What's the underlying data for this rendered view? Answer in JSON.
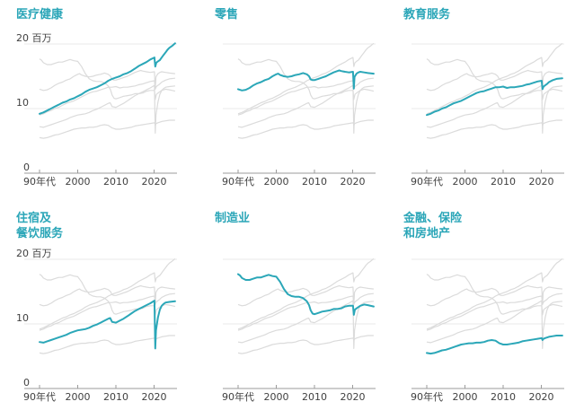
{
  "page": {
    "background": "#ffffff"
  },
  "chart_data": {
    "type": "line",
    "layout": "small_multiples_2x3",
    "unit_label": "百万",
    "grid": "horizontal-only",
    "legend": "none",
    "x_domain": [
      1990,
      2025.5
    ],
    "y_domain": [
      0,
      21
    ],
    "x_tick_labels": [
      "90年代",
      "2000",
      "2010",
      "2020"
    ],
    "x_tick_years": [
      1990,
      2000,
      2010,
      2020
    ],
    "y_ticks": [
      {
        "value": 20,
        "label": "20 百万"
      },
      {
        "value": 10,
        "label": "10"
      },
      {
        "value": 0,
        "label": "0"
      }
    ],
    "colors": {
      "highlight": "#2BA7B8",
      "title": "#2BA6B8",
      "context": "#DBDBDB",
      "grid": "#E8E8E8",
      "axis": "#9B9B9B",
      "text": "#404040"
    },
    "series_order": [
      "healthcare",
      "retail",
      "education",
      "accommodation_food",
      "manufacturing",
      "finance_insurance_real_estate"
    ],
    "series": {
      "healthcare": [
        [
          1990,
          9.2
        ],
        [
          1991,
          9.4
        ],
        [
          1992,
          9.7
        ],
        [
          1993,
          10.0
        ],
        [
          1994,
          10.3
        ],
        [
          1995,
          10.6
        ],
        [
          1996,
          10.9
        ],
        [
          1997,
          11.1
        ],
        [
          1998,
          11.4
        ],
        [
          1999,
          11.6
        ],
        [
          2000,
          11.9
        ],
        [
          2001,
          12.2
        ],
        [
          2002,
          12.6
        ],
        [
          2003,
          12.9
        ],
        [
          2004,
          13.1
        ],
        [
          2005,
          13.3
        ],
        [
          2006,
          13.6
        ],
        [
          2007,
          13.9
        ],
        [
          2008,
          14.3
        ],
        [
          2009,
          14.6
        ],
        [
          2010,
          14.8
        ],
        [
          2011,
          15.0
        ],
        [
          2012,
          15.3
        ],
        [
          2013,
          15.5
        ],
        [
          2014,
          15.8
        ],
        [
          2015,
          16.2
        ],
        [
          2016,
          16.6
        ],
        [
          2017,
          16.9
        ],
        [
          2018,
          17.2
        ],
        [
          2019,
          17.6
        ],
        [
          2020.1,
          17.9
        ],
        [
          2020.3,
          16.5
        ],
        [
          2020.6,
          17.1
        ],
        [
          2021,
          17.3
        ],
        [
          2021.5,
          17.5
        ],
        [
          2022,
          17.9
        ],
        [
          2022.5,
          18.3
        ],
        [
          2023,
          18.7
        ],
        [
          2023.5,
          19.1
        ],
        [
          2024,
          19.4
        ],
        [
          2024.7,
          19.7
        ],
        [
          2025.5,
          20.1
        ]
      ],
      "retail": [
        [
          1990,
          13.0
        ],
        [
          1991,
          12.8
        ],
        [
          1992,
          12.9
        ],
        [
          1993,
          13.2
        ],
        [
          1994,
          13.6
        ],
        [
          1995,
          13.9
        ],
        [
          1996,
          14.1
        ],
        [
          1997,
          14.4
        ],
        [
          1998,
          14.6
        ],
        [
          1999,
          15.0
        ],
        [
          2000,
          15.3
        ],
        [
          2000.5,
          15.4
        ],
        [
          2001,
          15.2
        ],
        [
          2002,
          15.0
        ],
        [
          2003,
          14.9
        ],
        [
          2004,
          15.0
        ],
        [
          2005,
          15.2
        ],
        [
          2006,
          15.3
        ],
        [
          2007,
          15.5
        ],
        [
          2008,
          15.3
        ],
        [
          2008.6,
          15.0
        ],
        [
          2009,
          14.5
        ],
        [
          2009.5,
          14.4
        ],
        [
          2010,
          14.4
        ],
        [
          2011,
          14.6
        ],
        [
          2012,
          14.8
        ],
        [
          2013,
          15.0
        ],
        [
          2014,
          15.3
        ],
        [
          2015,
          15.6
        ],
        [
          2016,
          15.8
        ],
        [
          2016.5,
          15.9
        ],
        [
          2017,
          15.8
        ],
        [
          2018,
          15.7
        ],
        [
          2019,
          15.6
        ],
        [
          2020.1,
          15.7
        ],
        [
          2020.3,
          13.1
        ],
        [
          2020.5,
          14.9
        ],
        [
          2021,
          15.4
        ],
        [
          2021.5,
          15.6
        ],
        [
          2022,
          15.7
        ],
        [
          2023,
          15.6
        ],
        [
          2024,
          15.5
        ],
        [
          2025.5,
          15.4
        ]
      ],
      "education": [
        [
          1990,
          9.0
        ],
        [
          1991,
          9.2
        ],
        [
          1992,
          9.5
        ],
        [
          1993,
          9.7
        ],
        [
          1994,
          10.0
        ],
        [
          1995,
          10.2
        ],
        [
          1996,
          10.5
        ],
        [
          1997,
          10.8
        ],
        [
          1998,
          11.0
        ],
        [
          1999,
          11.2
        ],
        [
          2000,
          11.5
        ],
        [
          2001,
          11.8
        ],
        [
          2002,
          12.1
        ],
        [
          2003,
          12.4
        ],
        [
          2004,
          12.6
        ],
        [
          2005,
          12.7
        ],
        [
          2006,
          12.9
        ],
        [
          2007,
          13.1
        ],
        [
          2008,
          13.3
        ],
        [
          2009,
          13.3
        ],
        [
          2010,
          13.4
        ],
        [
          2011,
          13.2
        ],
        [
          2012,
          13.3
        ],
        [
          2013,
          13.3
        ],
        [
          2014,
          13.4
        ],
        [
          2015,
          13.5
        ],
        [
          2016,
          13.7
        ],
        [
          2017,
          13.8
        ],
        [
          2018,
          14.0
        ],
        [
          2019,
          14.2
        ],
        [
          2020.1,
          14.3
        ],
        [
          2020.3,
          13.0
        ],
        [
          2020.6,
          13.4
        ],
        [
          2021,
          13.6
        ],
        [
          2021.5,
          13.8
        ],
        [
          2022,
          14.1
        ],
        [
          2023,
          14.4
        ],
        [
          2024,
          14.6
        ],
        [
          2025.5,
          14.7
        ]
      ],
      "accommodation_food": [
        [
          1990,
          7.2
        ],
        [
          1991,
          7.1
        ],
        [
          1992,
          7.3
        ],
        [
          1993,
          7.5
        ],
        [
          1994,
          7.7
        ],
        [
          1995,
          7.9
        ],
        [
          1996,
          8.1
        ],
        [
          1997,
          8.3
        ],
        [
          1998,
          8.6
        ],
        [
          1999,
          8.8
        ],
        [
          2000,
          9.0
        ],
        [
          2001,
          9.1
        ],
        [
          2002,
          9.2
        ],
        [
          2003,
          9.4
        ],
        [
          2004,
          9.7
        ],
        [
          2005,
          9.9
        ],
        [
          2006,
          10.2
        ],
        [
          2007,
          10.5
        ],
        [
          2008,
          10.8
        ],
        [
          2008.5,
          10.9
        ],
        [
          2009,
          10.3
        ],
        [
          2010,
          10.2
        ],
        [
          2011,
          10.5
        ],
        [
          2012,
          10.8
        ],
        [
          2013,
          11.2
        ],
        [
          2014,
          11.6
        ],
        [
          2015,
          12.0
        ],
        [
          2016,
          12.3
        ],
        [
          2017,
          12.6
        ],
        [
          2018,
          12.9
        ],
        [
          2019,
          13.2
        ],
        [
          2020.1,
          13.6
        ],
        [
          2020.3,
          6.2
        ],
        [
          2020.5,
          9.0
        ],
        [
          2020.8,
          10.2
        ],
        [
          2021,
          11.0
        ],
        [
          2021.5,
          12.2
        ],
        [
          2022,
          12.8
        ],
        [
          2022.5,
          13.1
        ],
        [
          2023,
          13.3
        ],
        [
          2024,
          13.4
        ],
        [
          2025.5,
          13.5
        ]
      ],
      "manufacturing": [
        [
          1990,
          17.7
        ],
        [
          1990.5,
          17.5
        ],
        [
          1991,
          17.1
        ],
        [
          1992,
          16.8
        ],
        [
          1993,
          16.8
        ],
        [
          1994,
          17.0
        ],
        [
          1995,
          17.2
        ],
        [
          1996,
          17.2
        ],
        [
          1997,
          17.4
        ],
        [
          1998,
          17.6
        ],
        [
          1999,
          17.4
        ],
        [
          2000,
          17.3
        ],
        [
          2001,
          16.5
        ],
        [
          2002,
          15.4
        ],
        [
          2003,
          14.6
        ],
        [
          2004,
          14.3
        ],
        [
          2005,
          14.2
        ],
        [
          2006,
          14.2
        ],
        [
          2007,
          14.0
        ],
        [
          2008,
          13.5
        ],
        [
          2008.6,
          12.9
        ],
        [
          2009,
          12.1
        ],
        [
          2009.5,
          11.6
        ],
        [
          2010,
          11.5
        ],
        [
          2011,
          11.7
        ],
        [
          2012,
          11.9
        ],
        [
          2013,
          12.0
        ],
        [
          2014,
          12.1
        ],
        [
          2015,
          12.3
        ],
        [
          2016,
          12.3
        ],
        [
          2017,
          12.4
        ],
        [
          2018,
          12.7
        ],
        [
          2019,
          12.8
        ],
        [
          2020.1,
          12.8
        ],
        [
          2020.3,
          11.4
        ],
        [
          2020.6,
          12.2
        ],
        [
          2021,
          12.4
        ],
        [
          2022,
          12.8
        ],
        [
          2023,
          13.0
        ],
        [
          2024,
          12.9
        ],
        [
          2025.5,
          12.7
        ]
      ],
      "finance_insurance_real_estate": [
        [
          1990,
          5.5
        ],
        [
          1991,
          5.4
        ],
        [
          1992,
          5.5
        ],
        [
          1993,
          5.7
        ],
        [
          1994,
          5.9
        ],
        [
          1995,
          6.0
        ],
        [
          1996,
          6.2
        ],
        [
          1997,
          6.4
        ],
        [
          1998,
          6.6
        ],
        [
          1999,
          6.8
        ],
        [
          2000,
          6.9
        ],
        [
          2001,
          7.0
        ],
        [
          2002,
          7.0
        ],
        [
          2003,
          7.1
        ],
        [
          2004,
          7.1
        ],
        [
          2005,
          7.2
        ],
        [
          2006,
          7.4
        ],
        [
          2007,
          7.5
        ],
        [
          2008,
          7.4
        ],
        [
          2009,
          7.0
        ],
        [
          2010,
          6.8
        ],
        [
          2011,
          6.8
        ],
        [
          2012,
          6.9
        ],
        [
          2013,
          7.0
        ],
        [
          2014,
          7.1
        ],
        [
          2015,
          7.3
        ],
        [
          2016,
          7.4
        ],
        [
          2017,
          7.5
        ],
        [
          2018,
          7.6
        ],
        [
          2019,
          7.7
        ],
        [
          2020.1,
          7.8
        ],
        [
          2020.3,
          7.5
        ],
        [
          2020.6,
          7.7
        ],
        [
          2021,
          7.8
        ],
        [
          2022,
          8.0
        ],
        [
          2023,
          8.1
        ],
        [
          2024,
          8.2
        ],
        [
          2025.5,
          8.2
        ]
      ]
    },
    "panels": [
      {
        "title": "医疗健康",
        "highlight": "healthcare",
        "show_y_axis_labels": true
      },
      {
        "title": "零售",
        "highlight": "retail",
        "show_y_axis_labels": false
      },
      {
        "title": "教育服务",
        "highlight": "education",
        "show_y_axis_labels": false
      },
      {
        "title": "住宿及\n餐饮服务",
        "highlight": "accommodation_food",
        "show_y_axis_labels": true
      },
      {
        "title": "制造业",
        "highlight": "manufacturing",
        "show_y_axis_labels": false
      },
      {
        "title": "金融、保险\n和房地产",
        "highlight": "finance_insurance_real_estate",
        "show_y_axis_labels": false
      }
    ]
  }
}
